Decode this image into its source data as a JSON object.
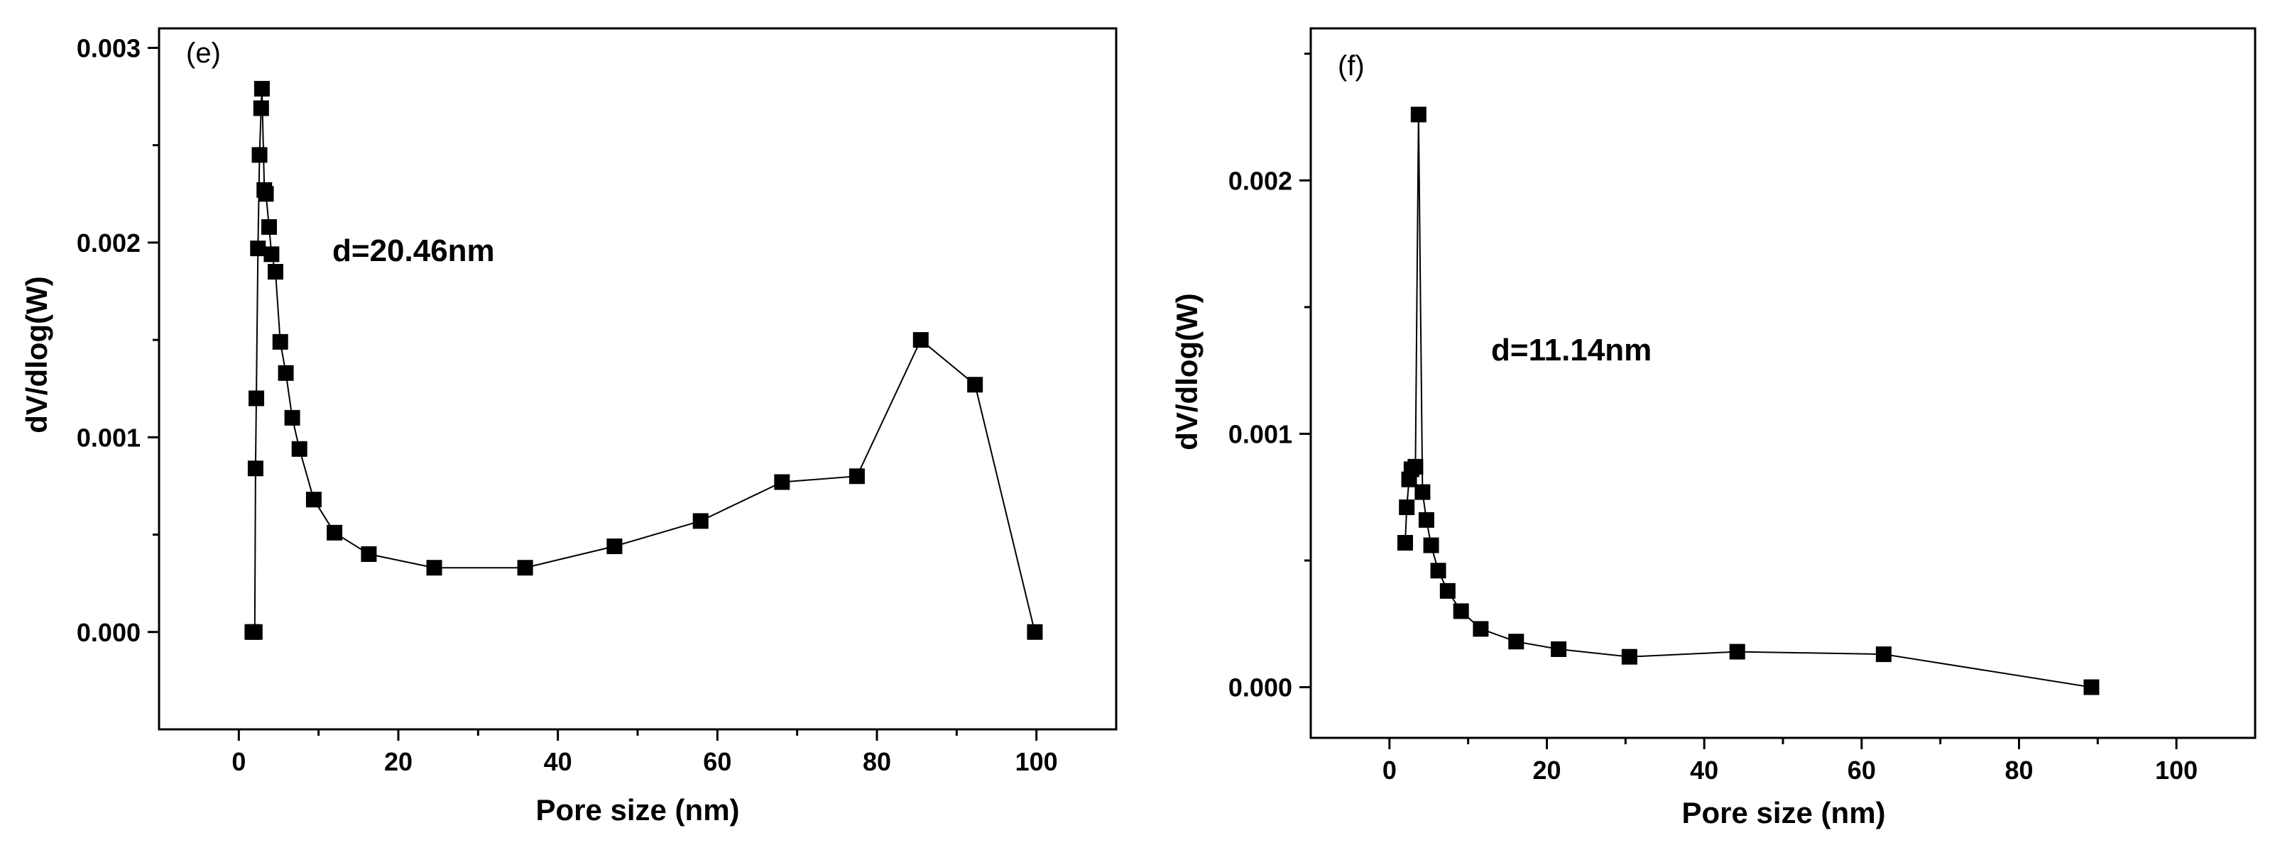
{
  "chart_data": [
    {
      "type": "line",
      "panel_label": "(e)",
      "annotation": "d=20.46nm",
      "xlabel": "Pore size (nm)",
      "ylabel": "dV/dlog(W)",
      "xlim": [
        -10,
        110
      ],
      "ylim": [
        -0.0005,
        0.0031
      ],
      "xticks": [
        0,
        20,
        40,
        60,
        80,
        100
      ],
      "xtick_labels": [
        "0",
        "20",
        "40",
        "60",
        "80",
        "100"
      ],
      "yticks": [
        0.0,
        0.001,
        0.002,
        0.003
      ],
      "ytick_labels": [
        "0.000",
        "0.001",
        "0.002",
        "0.003"
      ],
      "marker": "square",
      "series": [
        {
          "name": "(e)",
          "x": [
            1.7,
            2.0,
            2.1,
            2.2,
            2.4,
            2.6,
            2.8,
            2.9,
            3.2,
            3.4,
            3.8,
            4.1,
            4.6,
            5.2,
            5.9,
            6.7,
            7.6,
            9.4,
            12.0,
            16.3,
            24.5,
            35.9,
            47.1,
            57.9,
            68.1,
            77.5,
            85.5,
            92.3,
            99.8
          ],
          "y": [
            0.0,
            0.0,
            0.00084,
            0.0012,
            0.00197,
            0.00245,
            0.00269,
            0.00279,
            0.00227,
            0.00225,
            0.00208,
            0.00194,
            0.00185,
            0.00149,
            0.00133,
            0.0011,
            0.00094,
            0.00068,
            0.00051,
            0.0004,
            0.00033,
            0.00033,
            0.00044,
            0.00057,
            0.00077,
            0.0008,
            0.0015,
            0.00127,
            0.0
          ]
        }
      ]
    },
    {
      "type": "line",
      "panel_label": "(f)",
      "annotation": "d=11.14nm",
      "xlabel": "Pore size (nm)",
      "ylabel": "dV/dlog(W)",
      "xlim": [
        -10,
        110
      ],
      "ylim": [
        -0.0002,
        0.0026
      ],
      "xticks": [
        0,
        20,
        40,
        60,
        80,
        100
      ],
      "xtick_labels": [
        "0",
        "20",
        "40",
        "60",
        "80",
        "100"
      ],
      "yticks": [
        0.0,
        0.001,
        0.002
      ],
      "ytick_labels": [
        "0.000",
        "0.001",
        "0.002"
      ],
      "marker": "square",
      "series": [
        {
          "name": "(f)",
          "x": [
            2.0,
            2.2,
            2.5,
            2.8,
            3.3,
            3.7,
            4.2,
            4.7,
            5.3,
            6.2,
            7.4,
            9.1,
            11.6,
            16.1,
            21.5,
            30.5,
            44.2,
            62.8,
            89.2
          ],
          "y": [
            0.00057,
            0.00071,
            0.00082,
            0.00086,
            0.00087,
            0.00226,
            0.00077,
            0.00066,
            0.00056,
            0.00046,
            0.00038,
            0.0003,
            0.00023,
            0.00018,
            0.00015,
            0.00012,
            0.00014,
            0.00013,
            0.0
          ]
        }
      ]
    }
  ]
}
